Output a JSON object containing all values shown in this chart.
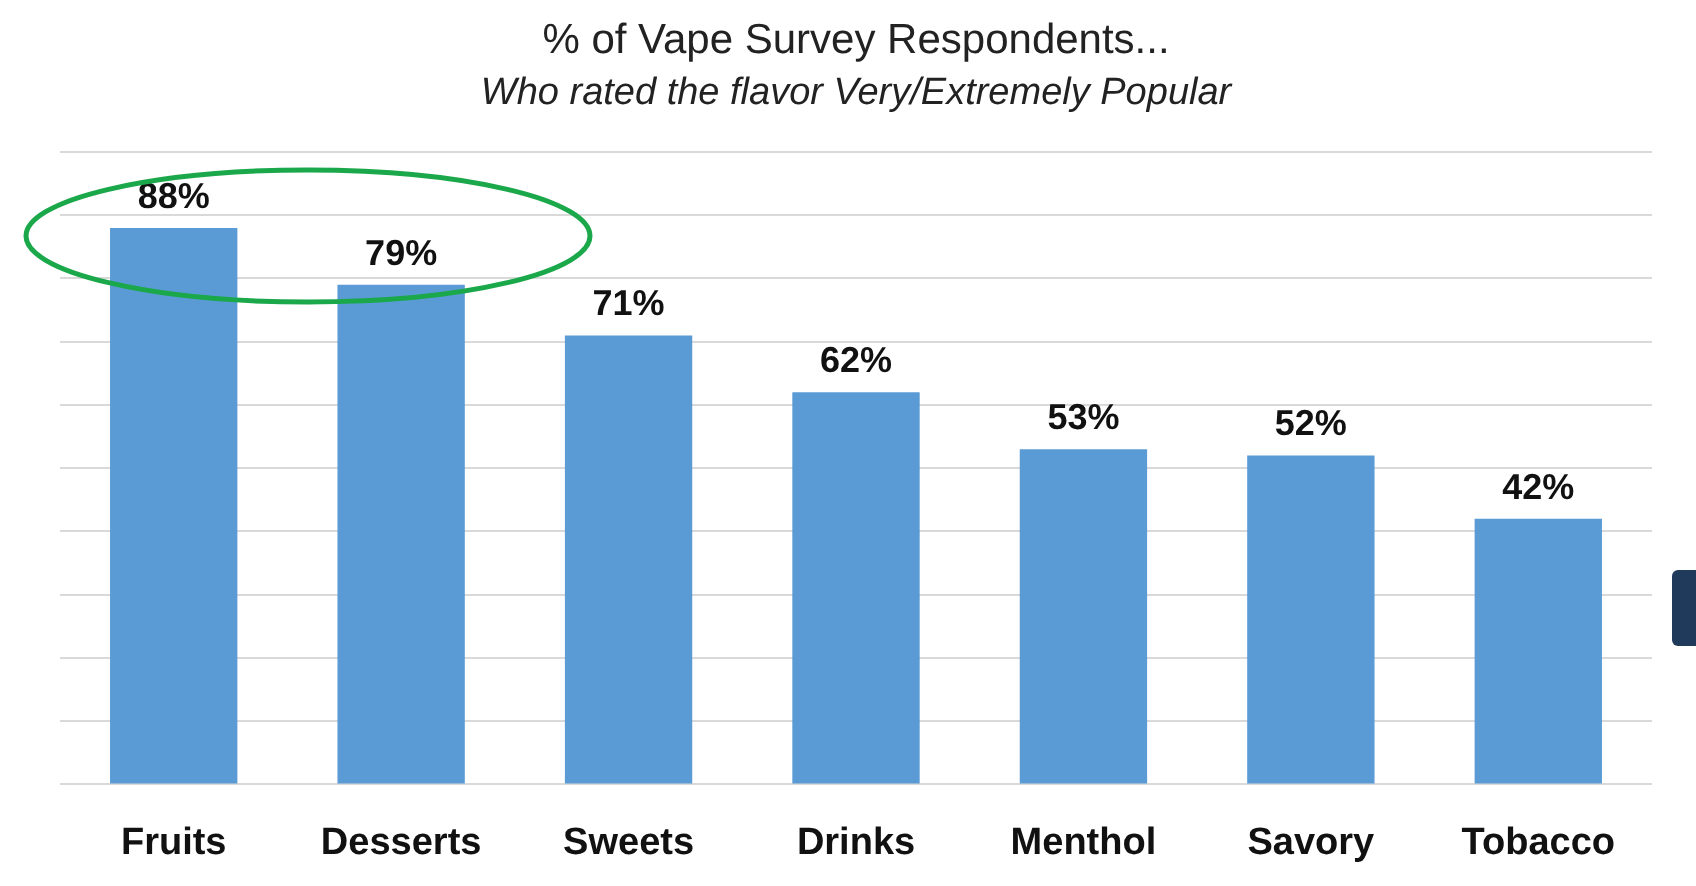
{
  "chart_data": {
    "type": "bar",
    "title": "% of Vape Survey Respondents...",
    "subtitle": "Who rated the flavor Very/Extremely Popular",
    "categories": [
      "Fruits",
      "Desserts",
      "Sweets",
      "Drinks",
      "Menthol",
      "Savory",
      "Tobacco"
    ],
    "values": [
      88,
      79,
      71,
      62,
      53,
      52,
      42
    ],
    "color": "#5b9bd5",
    "value_labels": [
      "88%",
      "79%",
      "71%",
      "62%",
      "53%",
      "52%",
      "42%"
    ],
    "ylim": [
      0,
      100
    ],
    "yticks": [
      {
        "value": 0,
        "label": null
      },
      {
        "value": 10,
        "label": null
      },
      {
        "value": 20,
        "label": null
      },
      {
        "value": 30,
        "label": null
      },
      {
        "value": 40,
        "label": null
      },
      {
        "value": 50,
        "label": null
      },
      {
        "value": 60,
        "label": null
      },
      {
        "value": 70,
        "label": null
      },
      {
        "value": 80,
        "label": null
      },
      {
        "value": 90,
        "label": null
      },
      {
        "value": 100,
        "label": null
      }
    ],
    "grid": "y",
    "tick_labels": "x",
    "legend": false
  }
}
